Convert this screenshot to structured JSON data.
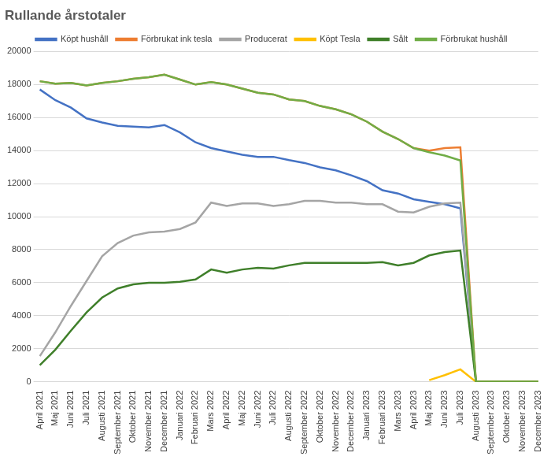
{
  "chart_data": {
    "type": "line",
    "title": "Rullande årstotaler",
    "categories": [
      "April 2021",
      "Maj 2021",
      "Juni 2021",
      "Juli 2021",
      "Augusti 2021",
      "September 2021",
      "Oktober 2021",
      "November 2021",
      "December 2021",
      "Januari 2022",
      "Februari 2022",
      "Mars 2022",
      "April 2022",
      "Maj 2022",
      "Juni 2022",
      "Juli 2022",
      "Augusti 2022",
      "September 2022",
      "Oktober 2022",
      "November 2022",
      "December 2022",
      "Januari 2023",
      "Februari 2023",
      "Mars 2023",
      "April 2023",
      "Maj 2023",
      "Juni 2023",
      "Juli 2023",
      "Augusti 2023",
      "September 2023",
      "Oktober 2023",
      "November 2023",
      "December 2023"
    ],
    "series": [
      {
        "name": "Köpt hushåll",
        "color": "#4472c4",
        "values": [
          17700,
          17050,
          16600,
          15950,
          15700,
          15500,
          15450,
          15400,
          15550,
          15100,
          14500,
          14150,
          13950,
          13750,
          13620,
          13620,
          13420,
          13250,
          12980,
          12800,
          12500,
          12150,
          11600,
          11400,
          11050,
          10900,
          10750,
          10500,
          0,
          0,
          0,
          0,
          0
        ]
      },
      {
        "name": "Förbrukat ink tesla",
        "color": "#ed7d31",
        "values": [
          18200,
          18050,
          18100,
          17950,
          18100,
          18200,
          18350,
          18450,
          18600,
          18300,
          18000,
          18150,
          18000,
          17750,
          17500,
          17400,
          17100,
          17000,
          16700,
          16500,
          16200,
          15750,
          15150,
          14700,
          14150,
          14000,
          14150,
          14200,
          0,
          0,
          0,
          0,
          0
        ]
      },
      {
        "name": "Producerat",
        "color": "#a5a5a5",
        "values": [
          1550,
          3000,
          4600,
          6100,
          7600,
          8400,
          8850,
          9050,
          9100,
          9250,
          9650,
          10850,
          10650,
          10800,
          10800,
          10650,
          10750,
          10950,
          10950,
          10850,
          10850,
          10750,
          10750,
          10300,
          10250,
          10600,
          10800,
          10850,
          0,
          0,
          0,
          0,
          0
        ]
      },
      {
        "name": "Köpt Tesla",
        "color": "#ffc000",
        "values": [
          null,
          null,
          null,
          null,
          null,
          null,
          null,
          null,
          null,
          null,
          null,
          null,
          null,
          null,
          null,
          null,
          null,
          null,
          null,
          null,
          null,
          null,
          null,
          null,
          null,
          100,
          400,
          750,
          0,
          0,
          0,
          0,
          0
        ]
      },
      {
        "name": "Sålt",
        "color": "#3f7f2a",
        "values": [
          1000,
          1950,
          3100,
          4200,
          5100,
          5650,
          5900,
          6000,
          6000,
          6050,
          6200,
          6800,
          6600,
          6800,
          6900,
          6850,
          7050,
          7200,
          7200,
          7200,
          7200,
          7200,
          7250,
          7050,
          7200,
          7650,
          7850,
          7950,
          0,
          0,
          0,
          0,
          0
        ]
      },
      {
        "name": "Förbrukat hushåll",
        "color": "#70ad47",
        "values": [
          18200,
          18050,
          18100,
          17950,
          18100,
          18200,
          18350,
          18450,
          18600,
          18300,
          18000,
          18150,
          18000,
          17750,
          17500,
          17400,
          17100,
          17000,
          16700,
          16500,
          16200,
          15750,
          15150,
          14700,
          14150,
          13900,
          13700,
          13400,
          0,
          0,
          0,
          0,
          0
        ]
      }
    ],
    "ylim": [
      0,
      20000
    ],
    "yticks": [
      0,
      2000,
      4000,
      6000,
      8000,
      10000,
      12000,
      14000,
      16000,
      18000,
      20000
    ],
    "grid": true,
    "legend": "top"
  }
}
